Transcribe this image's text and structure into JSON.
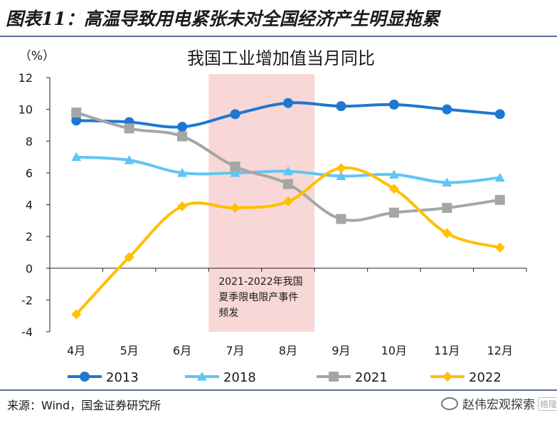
{
  "figure": {
    "title": "图表11：高温导致用电紧张未对全国经济产生明显拖累",
    "source": "来源：Wind，国金证券研究所",
    "watermark": "赵伟宏观探索",
    "watermark_badge": "格隆汇"
  },
  "chart_data": {
    "type": "line",
    "title": "我国工业增加值当月同比",
    "ylabel": "（%）",
    "xlabel": "",
    "categories": [
      "4月",
      "5月",
      "6月",
      "7月",
      "8月",
      "9月",
      "10月",
      "11月",
      "12月"
    ],
    "ylim": [
      -4,
      12
    ],
    "yticks": [
      12,
      10,
      8,
      6,
      4,
      2,
      0,
      -2,
      -4
    ],
    "grid": false,
    "legend_position": "bottom",
    "series": [
      {
        "name": "2013",
        "color": "#1f77d0",
        "marker": "circle",
        "values": [
          9.3,
          9.2,
          8.9,
          9.7,
          10.4,
          10.2,
          10.3,
          10.0,
          9.7
        ]
      },
      {
        "name": "2018",
        "color": "#5fc6f0",
        "marker": "triangle",
        "values": [
          7.0,
          6.8,
          6.0,
          6.0,
          6.1,
          5.8,
          5.9,
          5.4,
          5.7
        ]
      },
      {
        "name": "2021",
        "color": "#a6a6a6",
        "marker": "square",
        "values": [
          9.8,
          8.8,
          8.3,
          6.4,
          5.3,
          3.1,
          3.5,
          3.8,
          4.3
        ]
      },
      {
        "name": "2022",
        "color": "#ffc000",
        "marker": "diamond",
        "values": [
          -2.9,
          0.7,
          3.9,
          3.8,
          4.2,
          6.3,
          5.0,
          2.2,
          1.3
        ]
      }
    ],
    "highlight": {
      "from_category": "7月",
      "to_category": "8月",
      "color": "#f8d7d7",
      "annotation": [
        "2021-2022年我国",
        "夏季限电限产事件",
        "频发"
      ]
    }
  }
}
